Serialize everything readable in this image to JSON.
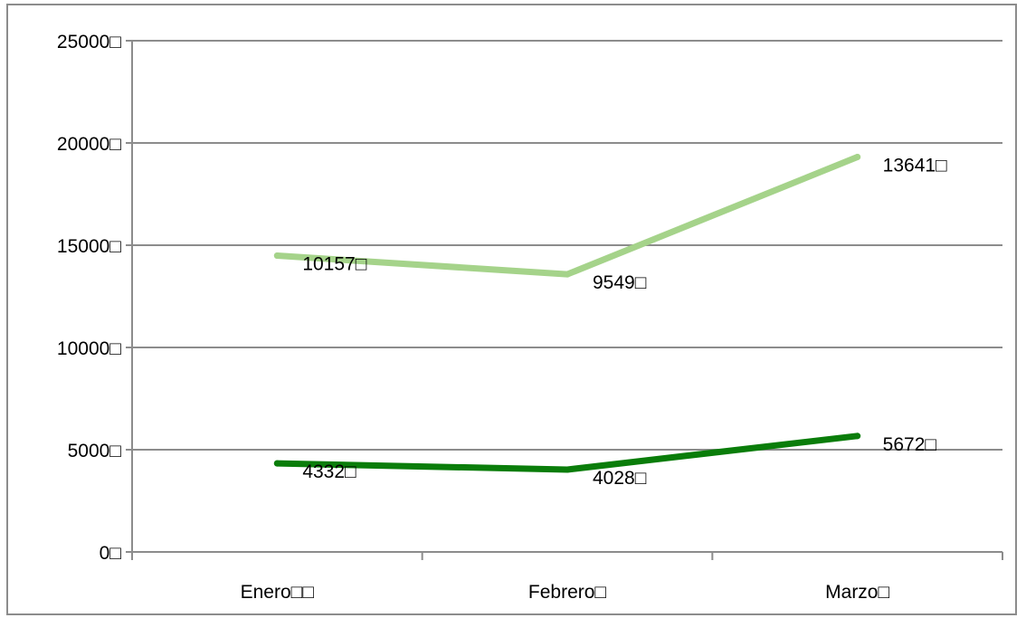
{
  "chart_data": {
    "type": "line",
    "title": "",
    "xlabel": "",
    "ylabel": "",
    "categories": [
      "Enero□□",
      "Febrero□",
      "Marzo□"
    ],
    "ylim": [
      0,
      25000
    ],
    "yticks": [
      0,
      5000,
      10000,
      15000,
      20000,
      25000
    ],
    "ytick_labels": [
      "0□",
      "5000□",
      "10000□",
      "15000□",
      "20000□",
      "25000□"
    ],
    "grid": true,
    "legend": "none",
    "series": [
      {
        "color": "#a5d38a",
        "values": [
          14490,
          13577,
          19313
        ],
        "labels": [
          "10157□",
          "9549□",
          "13641□"
        ]
      },
      {
        "color": "#0a7d0a",
        "values": [
          4332,
          4028,
          5672
        ],
        "labels": [
          "4332□",
          "4028□",
          "5672□"
        ]
      }
    ]
  }
}
